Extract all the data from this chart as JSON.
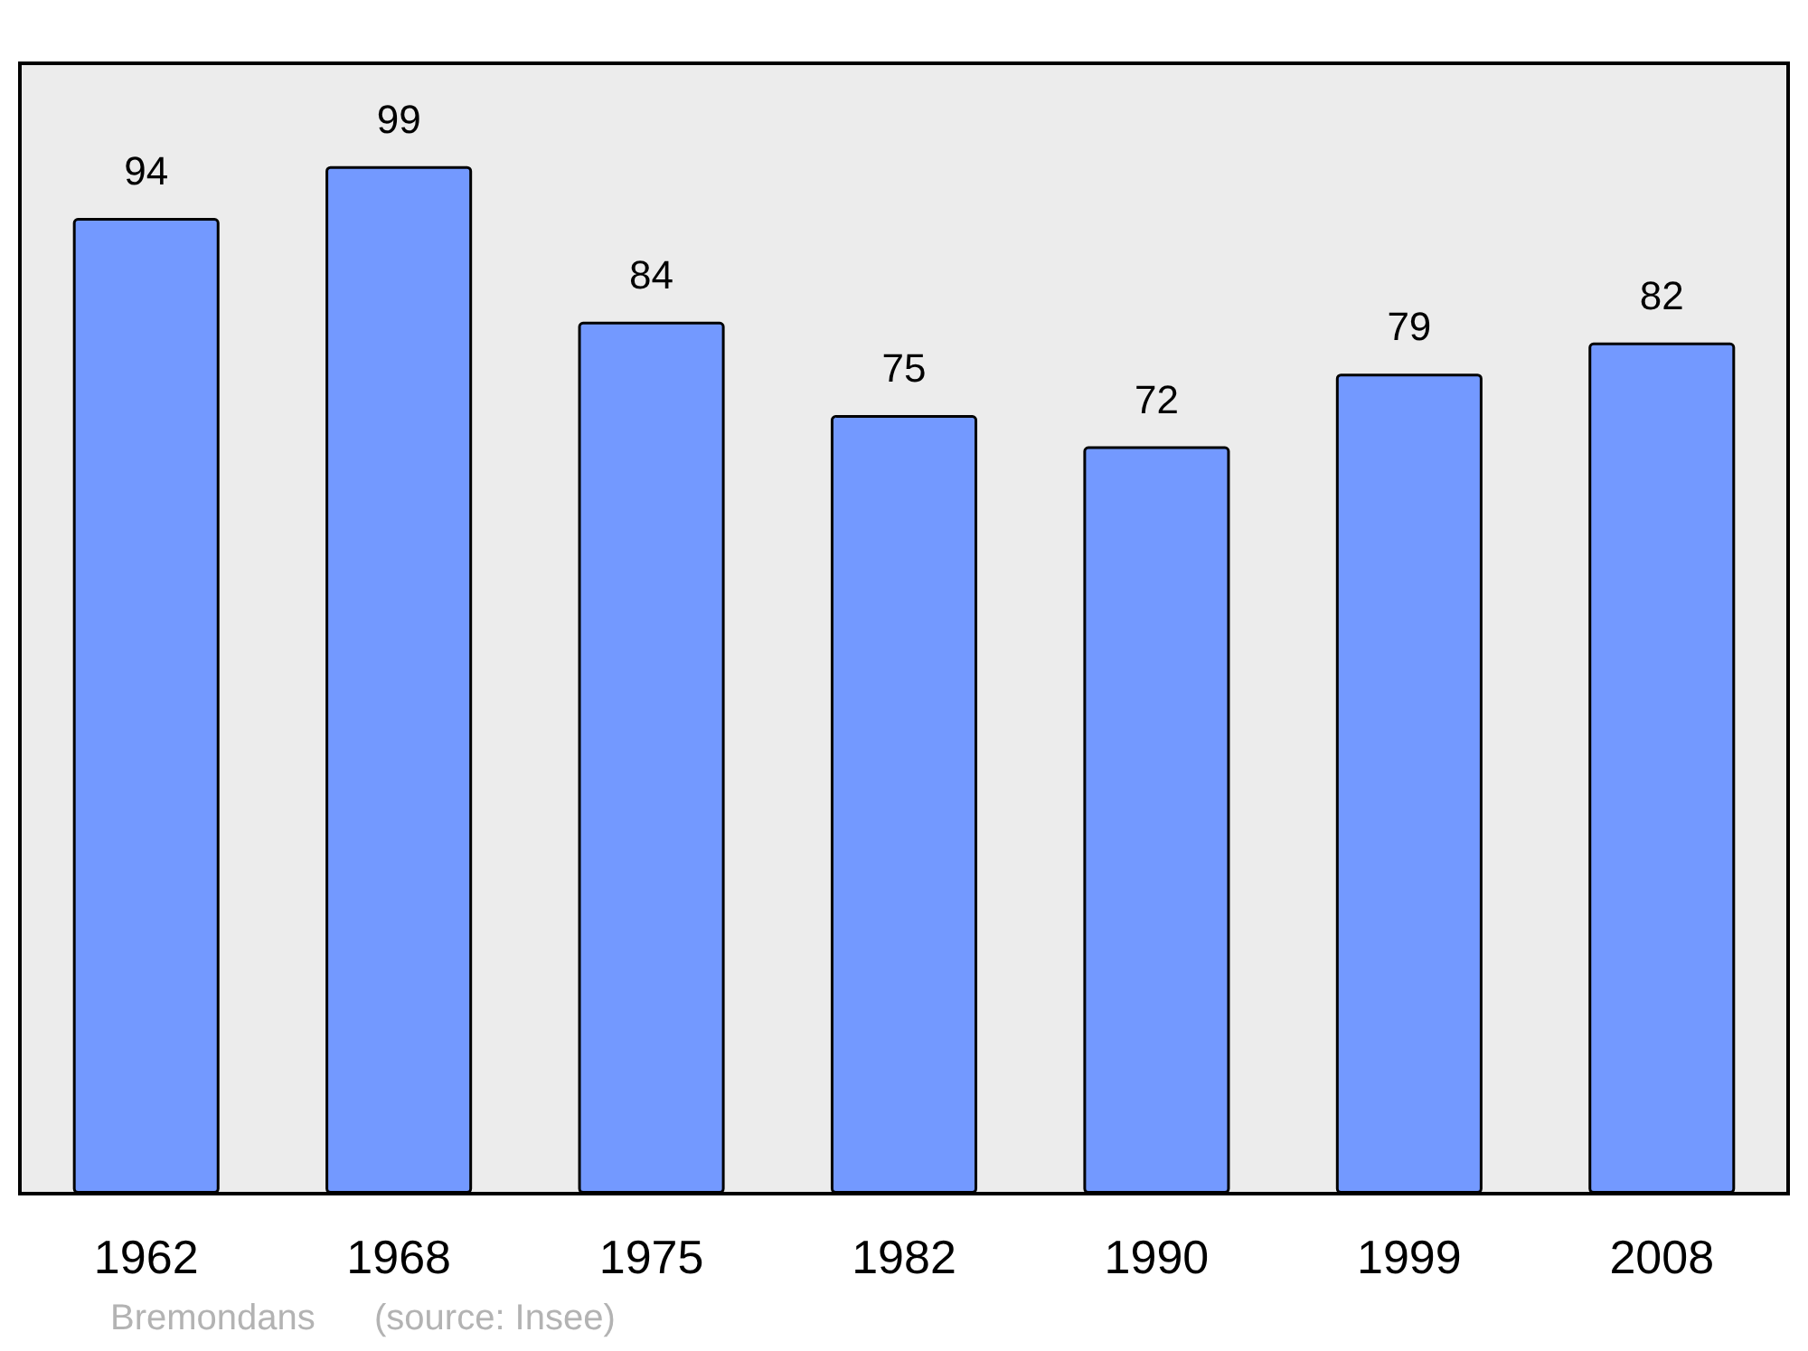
{
  "chart_data": {
    "type": "bar",
    "categories": [
      "1962",
      "1968",
      "1975",
      "1982",
      "1990",
      "1999",
      "2008"
    ],
    "values": [
      94,
      99,
      84,
      75,
      72,
      79,
      82
    ],
    "color": "#7399ff",
    "data_labels": true,
    "annotations": [
      "Bremondans",
      "(source: Insee)"
    ]
  }
}
